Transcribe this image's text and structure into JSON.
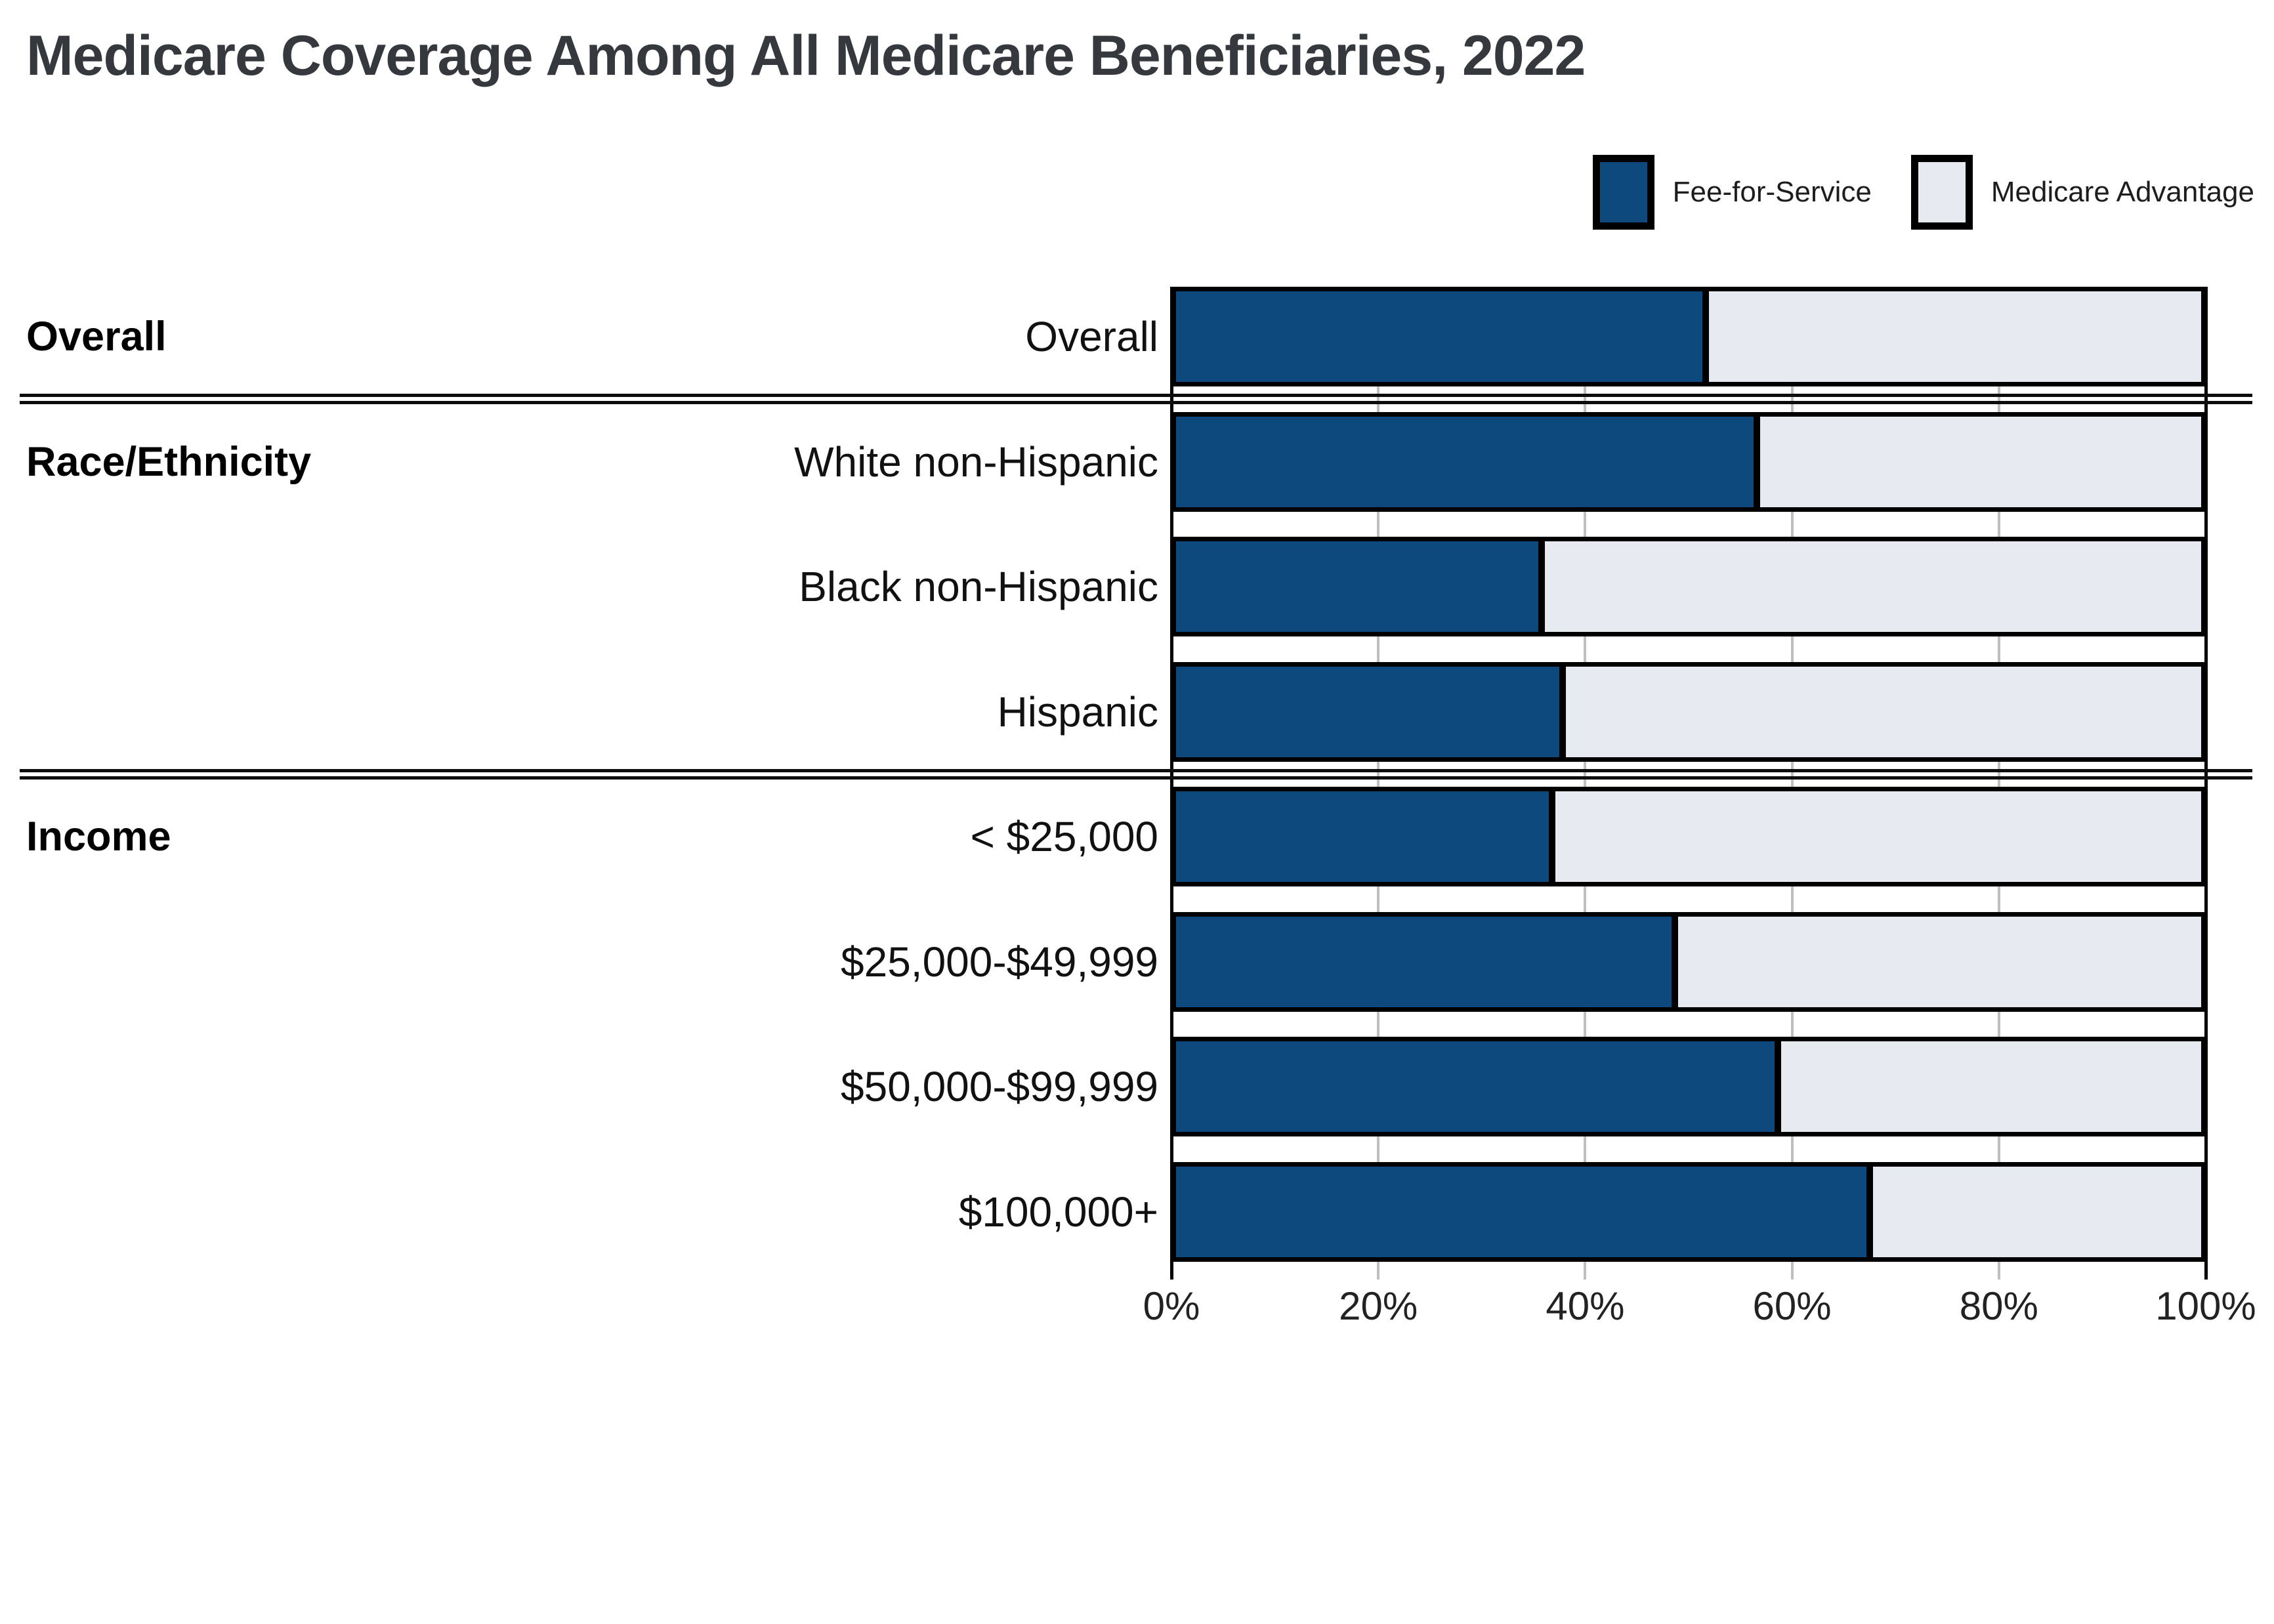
{
  "title": "Medicare Coverage Among All Medicare Beneficiaries, 2022",
  "legend": [
    {
      "label": "Fee-for-Service",
      "color": "#0D497D"
    },
    {
      "label": "Medicare Advantage",
      "color": "#E7EAF1"
    }
  ],
  "colors": {
    "fee_for_service": "#0D497D",
    "medicare_advantage": "#E7EAF1",
    "bar_border": "#000000",
    "gridline": "#BFBFBF",
    "title_text": "#35393E",
    "label_text": "#111111"
  },
  "x_axis": {
    "ticks": [
      "0%",
      "20%",
      "40%",
      "60%",
      "80%",
      "100%"
    ],
    "tick_percents": [
      0,
      20,
      40,
      60,
      80,
      100
    ],
    "range": [
      0,
      100
    ]
  },
  "chart_data": {
    "type": "bar",
    "orientation": "horizontal",
    "stacked": true,
    "units": "percent",
    "title": "Medicare Coverage Among All Medicare Beneficiaries, 2022",
    "categories": [
      "Overall",
      "White non-Hispanic",
      "Black non-Hispanic",
      "Hispanic",
      "< $25,000",
      "$25,000-$49,999",
      "$50,000-$99,999",
      "$100,000+"
    ],
    "series": [
      {
        "name": "Fee-for-Service",
        "values": [
          52,
          57,
          36,
          38,
          37,
          49,
          59,
          68
        ]
      },
      {
        "name": "Medicare Advantage",
        "values": [
          48,
          43,
          64,
          62,
          63,
          51,
          41,
          32
        ]
      }
    ],
    "rows": [
      {
        "section": "Overall",
        "category": "Overall",
        "fee_for_service": 52,
        "medicare_advantage": 48
      },
      {
        "section": "Race/Ethnicity",
        "category": "White non-Hispanic",
        "fee_for_service": 57,
        "medicare_advantage": 43
      },
      {
        "section": "",
        "category": "Black non-Hispanic",
        "fee_for_service": 36,
        "medicare_advantage": 64
      },
      {
        "section": "",
        "category": "Hispanic",
        "fee_for_service": 38,
        "medicare_advantage": 62
      },
      {
        "section": "Income",
        "category": "< $25,000",
        "fee_for_service": 37,
        "medicare_advantage": 63
      },
      {
        "section": "",
        "category": "$25,000-$49,999",
        "fee_for_service": 49,
        "medicare_advantage": 51
      },
      {
        "section": "",
        "category": "$50,000-$99,999",
        "fee_for_service": 59,
        "medicare_advantage": 41
      },
      {
        "section": "",
        "category": "$100,000+",
        "fee_for_service": 68,
        "medicare_advantage": 32
      }
    ],
    "xlim": [
      0,
      100
    ],
    "grid": "vertical",
    "legend_position": "top-right"
  }
}
